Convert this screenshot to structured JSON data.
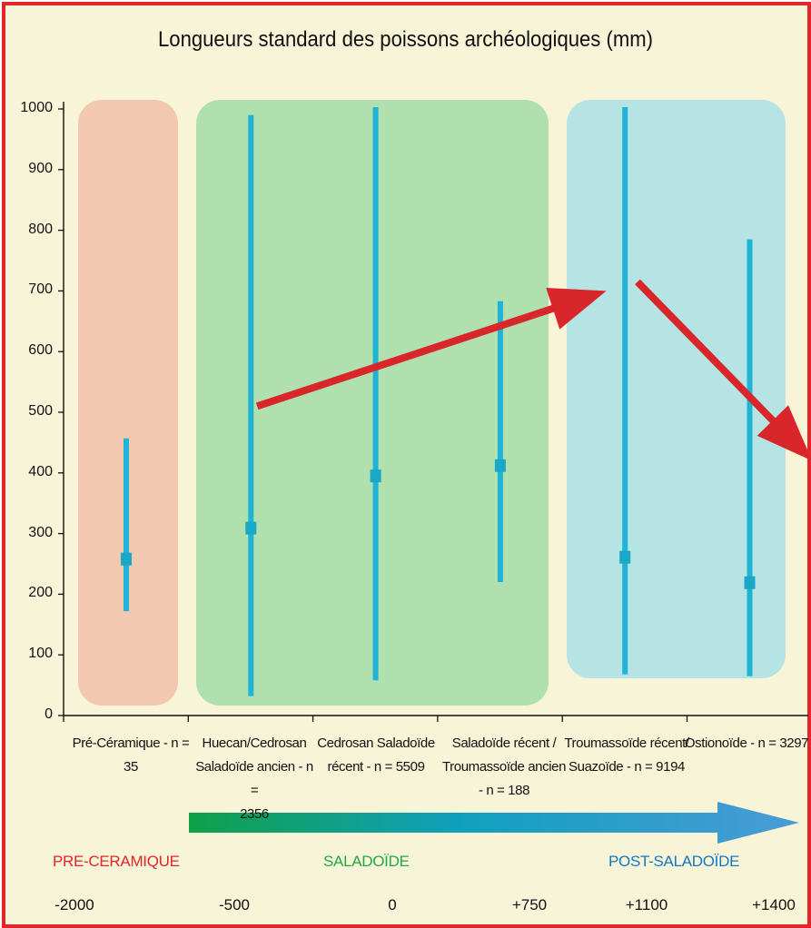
{
  "chart_data": {
    "type": "range",
    "title": "Longueurs standard des poissons archéologiques (mm)",
    "ylim": [
      0,
      1000
    ],
    "yticks": [
      "0",
      "100",
      "200",
      "300",
      "400",
      "500",
      "600",
      "700",
      "800",
      "900",
      "1000"
    ],
    "categories": [
      [
        "Pré-Céramique - n =",
        "35"
      ],
      [
        "Huecan/Cedrosan",
        "Saladoïde ancien - n =",
        "2356"
      ],
      [
        "Cedrosan Saladoïde",
        "récent - n = 5509"
      ],
      [
        "Saladoïde récent /",
        "Troumassoïde ancien",
        "- n = 188"
      ],
      [
        "Troumassoïde récent/",
        "Suazoïde - n = 9194"
      ],
      [
        "Ostionoïde - n = 3297"
      ]
    ],
    "series": [
      {
        "values": [
          {
            "min": 172,
            "max": 457,
            "mean": 258
          },
          {
            "min": 32,
            "max": 990,
            "mean": 309
          },
          {
            "min": 58,
            "max": 1003,
            "mean": 395
          },
          {
            "min": 220,
            "max": 683,
            "mean": 412
          },
          {
            "min": 68,
            "max": 1003,
            "mean": 261
          },
          {
            "min": 65,
            "max": 785,
            "mean": 219
          }
        ]
      }
    ],
    "trend_arrows": [
      {
        "from": {
          "x": 1.05,
          "y": 510
        },
        "to": {
          "x": 3.85,
          "y": 700
        }
      },
      {
        "from": {
          "x": 4.1,
          "y": 715
        },
        "to": {
          "x": 5.5,
          "y": 420
        }
      }
    ],
    "groups": [
      {
        "label": "PRE-CERAMIQUE",
        "color": "#e3262a",
        "band_color": "#f2c8b0",
        "categories": [
          0
        ]
      },
      {
        "label": "SALADOÏDE",
        "color": "#22aa44",
        "band_color": "#b0e0ad",
        "categories": [
          1,
          2,
          3
        ]
      },
      {
        "label": "POST-SALADOÏDE",
        "color": "#1577c4",
        "band_color": "#b6e3e3",
        "categories": [
          4,
          5
        ]
      }
    ],
    "timeline": [
      "-2000",
      "-500",
      "0",
      "+750",
      "+1100",
      "+1400"
    ],
    "colors": {
      "range_line": "#1fb4d6",
      "mean_marker": "#1aa8c8",
      "arrow": "#d9262a",
      "frame": "#e3262a"
    }
  }
}
